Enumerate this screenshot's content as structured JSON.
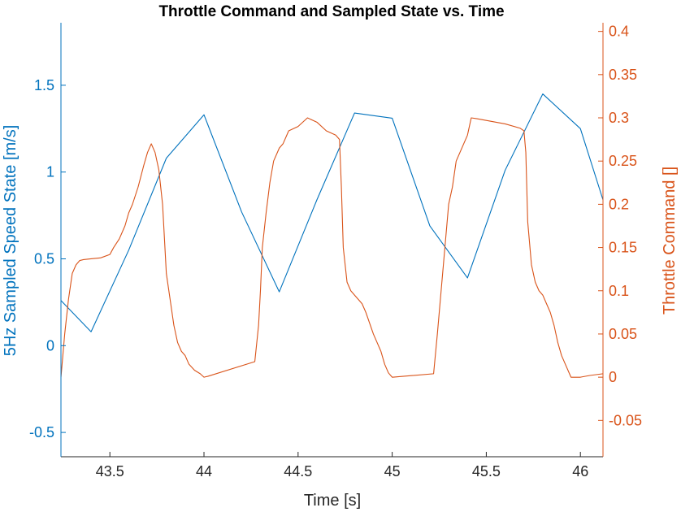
{
  "chart_data": {
    "type": "line",
    "title": "Throttle Command and Sampled State vs. Time",
    "xlabel": "Time [s]",
    "ylabel_left": "5Hz Sampled Speed State [m/s]",
    "ylabel_right": "Throttle Command []",
    "xlim": [
      43.24,
      46.12
    ],
    "ylim_left": [
      -0.64,
      1.86
    ],
    "ylim_right": [
      -0.092,
      0.41
    ],
    "x_ticks": [
      43.5,
      44,
      44.5,
      45,
      45.5,
      46
    ],
    "x_tick_labels": [
      "43.5",
      "44",
      "44.5",
      "45",
      "45.5",
      "46"
    ],
    "y_left_ticks": [
      -0.5,
      0,
      0.5,
      1,
      1.5
    ],
    "y_left_tick_labels": [
      "-0.5",
      "0",
      "0.5",
      "1",
      "1.5"
    ],
    "y_right_ticks": [
      -0.05,
      0,
      0.05,
      0.1,
      0.15,
      0.2,
      0.25,
      0.3,
      0.35,
      0.4
    ],
    "y_right_tick_labels": [
      "-0.05",
      "0",
      "0.05",
      "0.1",
      "0.15",
      "0.2",
      "0.25",
      "0.3",
      "0.35",
      "0.4"
    ],
    "grid": false,
    "colors": {
      "left": "#0072BD",
      "right": "#D95319",
      "axis": "#262626"
    },
    "series": [
      {
        "axis": "left",
        "x": [
          43.24,
          43.4,
          43.6,
          43.8,
          44.0,
          44.2,
          44.4,
          44.6,
          44.8,
          45.0,
          45.2,
          45.4,
          45.6,
          45.8,
          46.0,
          46.12
        ],
        "y": [
          0.26,
          0.08,
          0.55,
          1.08,
          1.33,
          0.77,
          0.31,
          0.84,
          1.34,
          1.31,
          0.69,
          0.39,
          1.01,
          1.45,
          1.25,
          0.84
        ]
      },
      {
        "axis": "right",
        "x": [
          43.24,
          43.26,
          43.28,
          43.3,
          43.32,
          43.34,
          43.36,
          43.4,
          43.45,
          43.5,
          43.52,
          43.55,
          43.58,
          43.6,
          43.62,
          43.65,
          43.68,
          43.7,
          43.72,
          43.74,
          43.76,
          43.78,
          43.8,
          43.82,
          43.84,
          43.86,
          43.88,
          43.9,
          43.92,
          43.95,
          43.98,
          44.0,
          44.02,
          44.27,
          44.29,
          44.3,
          44.31,
          44.33,
          44.35,
          44.37,
          44.4,
          44.42,
          44.45,
          44.5,
          44.55,
          44.6,
          44.65,
          44.7,
          44.72,
          44.73,
          44.74,
          44.76,
          44.78,
          44.8,
          44.84,
          44.86,
          44.9,
          44.92,
          44.94,
          44.96,
          44.98,
          45.0,
          45.22,
          45.24,
          45.26,
          45.28,
          45.3,
          45.32,
          45.34,
          45.36,
          45.38,
          45.4,
          45.42,
          45.45,
          45.5,
          45.55,
          45.6,
          45.68,
          45.7,
          45.71,
          45.72,
          45.74,
          45.76,
          45.78,
          45.8,
          45.82,
          45.84,
          45.86,
          45.88,
          45.9,
          45.92,
          45.95,
          46.0,
          46.05,
          46.12
        ],
        "y": [
          0.0,
          0.05,
          0.09,
          0.12,
          0.13,
          0.135,
          0.136,
          0.137,
          0.138,
          0.142,
          0.15,
          0.16,
          0.175,
          0.19,
          0.2,
          0.22,
          0.245,
          0.26,
          0.27,
          0.26,
          0.24,
          0.2,
          0.12,
          0.09,
          0.06,
          0.04,
          0.03,
          0.025,
          0.015,
          0.008,
          0.004,
          0.0,
          0.001,
          0.018,
          0.06,
          0.1,
          0.15,
          0.19,
          0.225,
          0.25,
          0.265,
          0.27,
          0.285,
          0.29,
          0.3,
          0.295,
          0.285,
          0.28,
          0.275,
          0.22,
          0.15,
          0.11,
          0.1,
          0.095,
          0.085,
          0.075,
          0.05,
          0.04,
          0.03,
          0.015,
          0.005,
          0.0,
          0.004,
          0.05,
          0.1,
          0.15,
          0.2,
          0.22,
          0.25,
          0.26,
          0.27,
          0.28,
          0.3,
          0.299,
          0.297,
          0.295,
          0.293,
          0.288,
          0.285,
          0.26,
          0.18,
          0.13,
          0.11,
          0.1,
          0.095,
          0.085,
          0.075,
          0.06,
          0.04,
          0.025,
          0.015,
          0.0,
          0.0,
          0.002,
          0.004
        ]
      }
    ]
  }
}
